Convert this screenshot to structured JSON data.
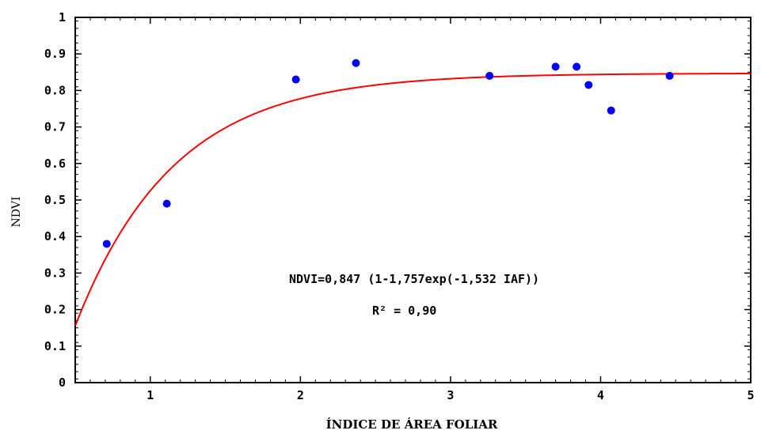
{
  "chart_data": {
    "type": "scatter",
    "xlabel": "ÍNDICE DE ÁREA FOLIAR",
    "ylabel": "NDVI",
    "xlim": [
      0.5,
      5
    ],
    "ylim": [
      0,
      1
    ],
    "x_ticks": [
      "1",
      "2",
      "3",
      "4",
      "5"
    ],
    "y_ticks": [
      "0",
      "0.1",
      "0.2",
      "0.3",
      "0.4",
      "0.5",
      "0.6",
      "0.7",
      "0.8",
      "0.9",
      "1"
    ],
    "grid": false,
    "points": {
      "color": "#0000ff",
      "x": [
        0.71,
        1.11,
        1.97,
        2.37,
        3.26,
        3.7,
        3.84,
        3.92,
        4.07,
        4.46
      ],
      "y": [
        0.38,
        0.49,
        0.83,
        0.875,
        0.84,
        0.865,
        0.865,
        0.815,
        0.745,
        0.84
      ]
    },
    "fit": {
      "color": "#ff0000",
      "a": 0.847,
      "b": 1.757,
      "c": 1.532
    },
    "annotations": [
      "NDVI=0,847 (1-1,757exp(-1,532 IAF))",
      "R² = 0,90"
    ]
  }
}
